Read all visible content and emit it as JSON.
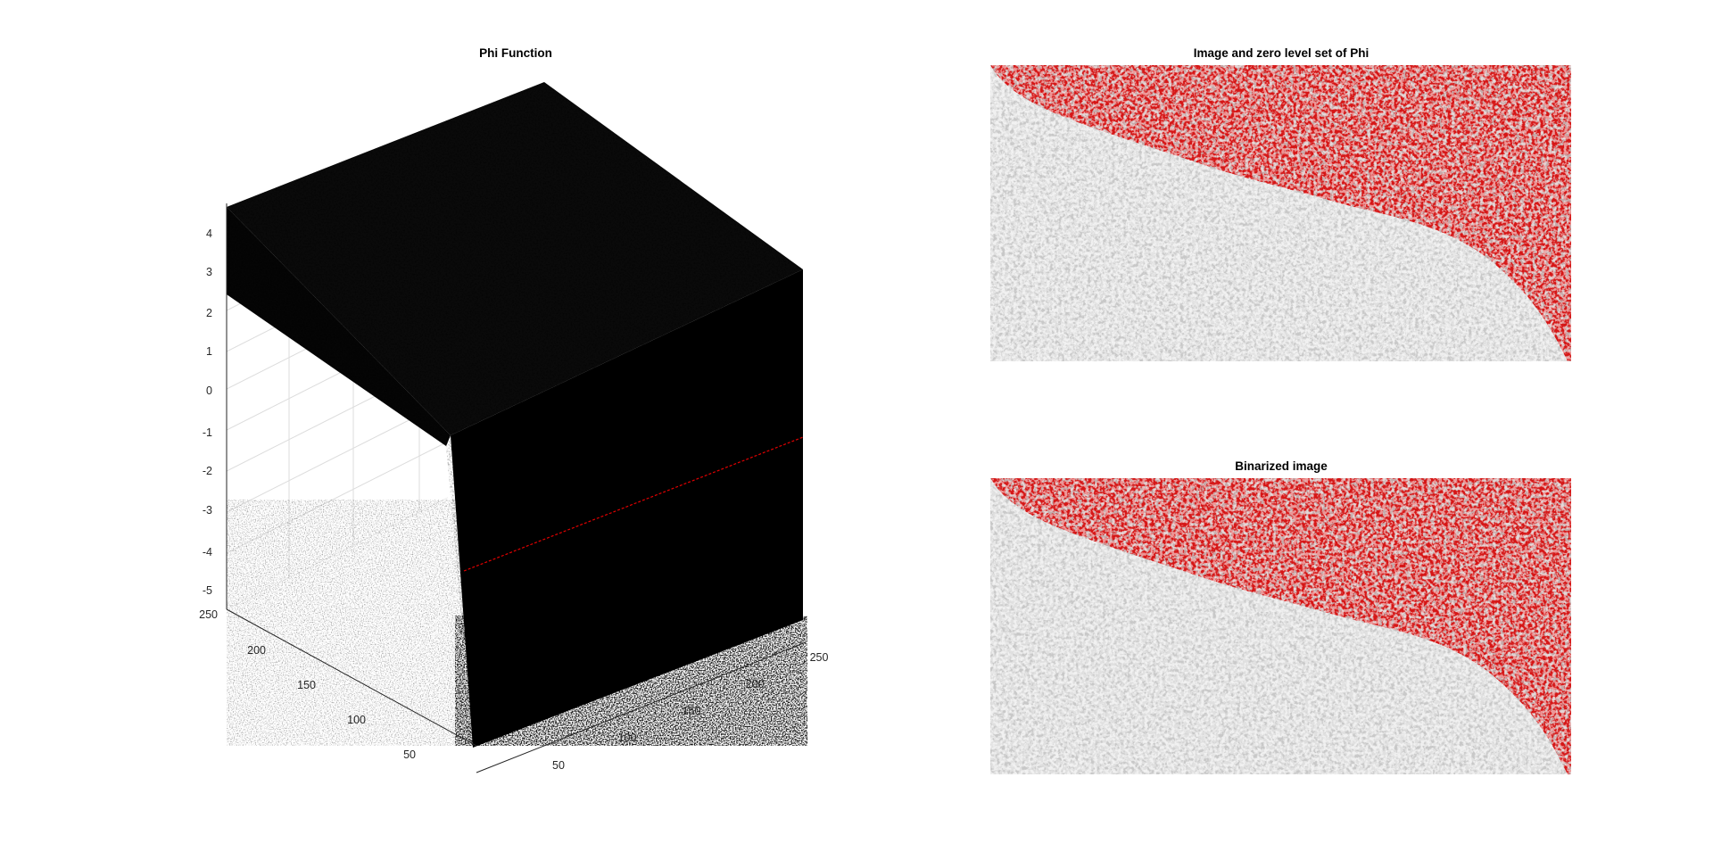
{
  "colors": {
    "background": "#ffffff",
    "surface": "#000000",
    "contour": "#ff0000",
    "gray_region": "#e0e0e0",
    "noise_gray": "#8a8a8a",
    "grid": "#dcdcdc"
  },
  "chart_data": [
    {
      "type": "surface",
      "title": "Phi Function",
      "xlabel": "",
      "ylabel": "",
      "zlabel": "",
      "x_ticks": [
        "50",
        "100",
        "150",
        "200",
        "250"
      ],
      "y_ticks": [
        "50",
        "100",
        "150",
        "200",
        "250"
      ],
      "z_ticks": [
        "4",
        "3",
        "2",
        "1",
        "0",
        "-1",
        "-2",
        "-3",
        "-4",
        "-5"
      ],
      "xlim": [
        1,
        256
      ],
      "ylim": [
        1,
        256
      ],
      "zlim": [
        -5,
        4.5
      ],
      "grid": true,
      "surface_color": "black",
      "zero_level_contour_color": "red",
      "plateau_level_approx": 3.5,
      "floor_level_approx": -4.5
    },
    {
      "type": "image",
      "title": "Image and zero level set of Phi",
      "colormap": "gray",
      "overlay": "zero level set contour (red)",
      "axes_visible": false
    },
    {
      "type": "image",
      "title": "Binarized image",
      "colormap": "gray",
      "overlay": "zero level set contour (red)",
      "axes_visible": false
    }
  ]
}
